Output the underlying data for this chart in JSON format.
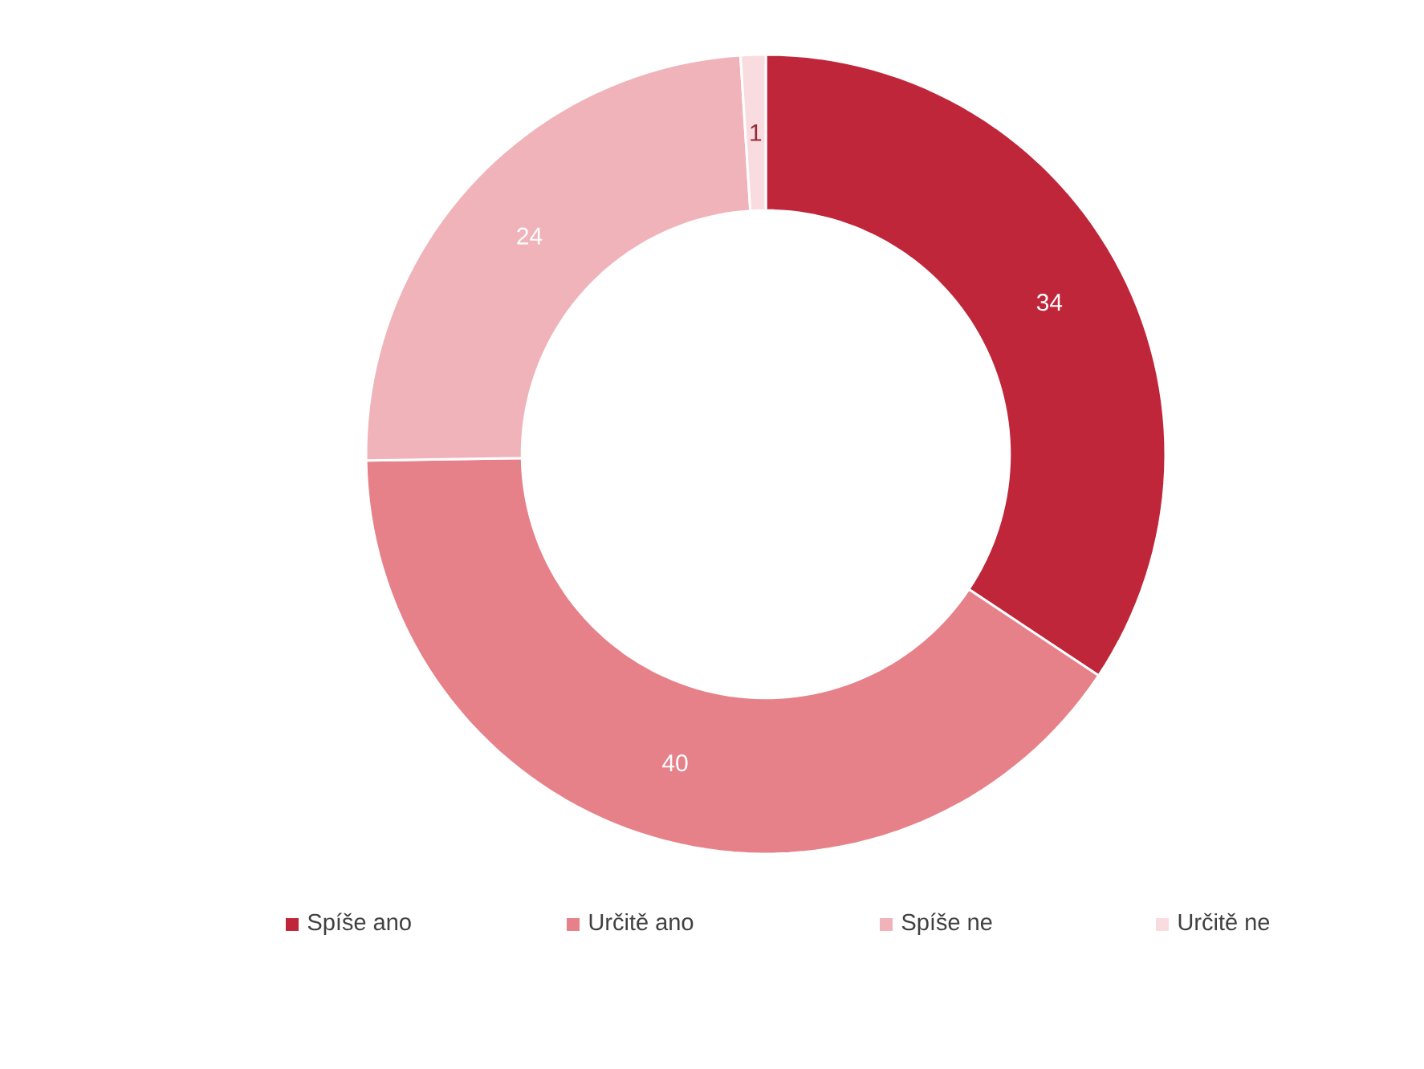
{
  "chart_data": {
    "type": "donut",
    "categories": [
      "Spíše ano",
      "Určitě ano",
      "Spíše ne",
      "Určitě ne"
    ],
    "values": [
      34,
      40,
      24,
      1
    ],
    "colors": [
      "#c0263a",
      "#e6818a",
      "#f0b3ba",
      "#f9dce0"
    ],
    "data_labels": true,
    "legend": "bottom"
  }
}
